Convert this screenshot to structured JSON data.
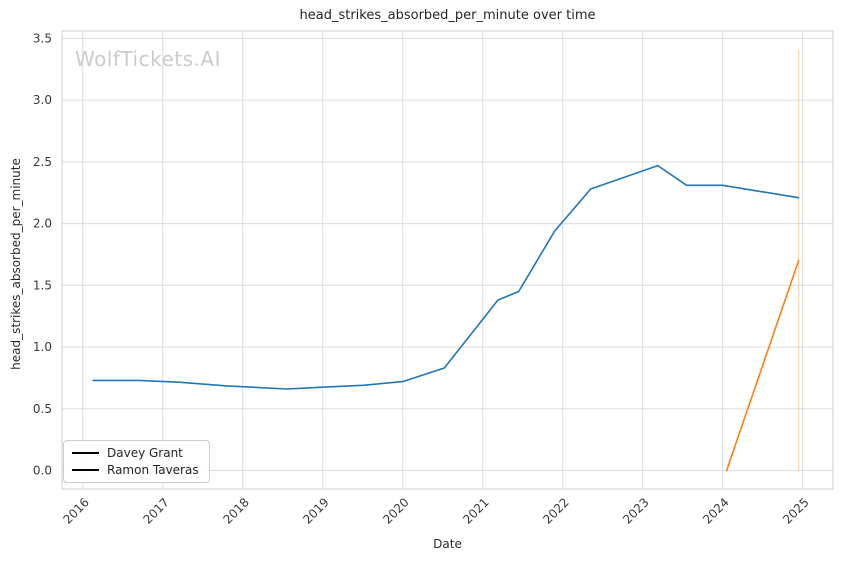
{
  "watermark": "WolfTickets.AI",
  "chart_data": {
    "type": "line",
    "title": "head_strikes_absorbed_per_minute over time",
    "xlabel": "Date",
    "ylabel": "head_strikes_absorbed_per_minute",
    "grid": true,
    "legend_position": "lower left",
    "xlim": [
      2015.74,
      2025.38
    ],
    "ylim": [
      -0.15,
      3.56
    ],
    "xticks": [
      2016,
      2017,
      2018,
      2019,
      2020,
      2021,
      2022,
      2023,
      2024,
      2025
    ],
    "yticks": [
      0.0,
      0.5,
      1.0,
      1.5,
      2.0,
      2.5,
      3.0,
      3.5
    ],
    "colors": {
      "grid": "#dcdcdc",
      "spine": "#cccccc",
      "text": "#2b2b2b"
    },
    "series": [
      {
        "name": "Davey Grant",
        "color": "#1f77b4",
        "points": [
          [
            2016.13,
            0.73
          ],
          [
            2016.7,
            0.73
          ],
          [
            2017.2,
            0.715
          ],
          [
            2017.8,
            0.685
          ],
          [
            2018.55,
            0.66
          ],
          [
            2019.0,
            0.675
          ],
          [
            2019.5,
            0.69
          ],
          [
            2020.0,
            0.72
          ],
          [
            2020.52,
            0.83
          ],
          [
            2021.19,
            1.38
          ],
          [
            2021.45,
            1.45
          ],
          [
            2021.9,
            1.94
          ],
          [
            2022.35,
            2.28
          ],
          [
            2023.19,
            2.47
          ],
          [
            2023.55,
            2.31
          ],
          [
            2024.0,
            2.31
          ],
          [
            2024.95,
            2.21
          ]
        ]
      },
      {
        "name": "Ramon Taveras",
        "color": "#ff7f0e",
        "points": [
          [
            2024.05,
            0.0
          ],
          [
            2024.95,
            1.7
          ]
        ]
      }
    ],
    "annotations": [
      {
        "type": "vline",
        "x": 2024.95,
        "y0": 0.0,
        "y1": 3.41,
        "color": "#ff7f0e",
        "opacity": 0.3
      }
    ]
  }
}
